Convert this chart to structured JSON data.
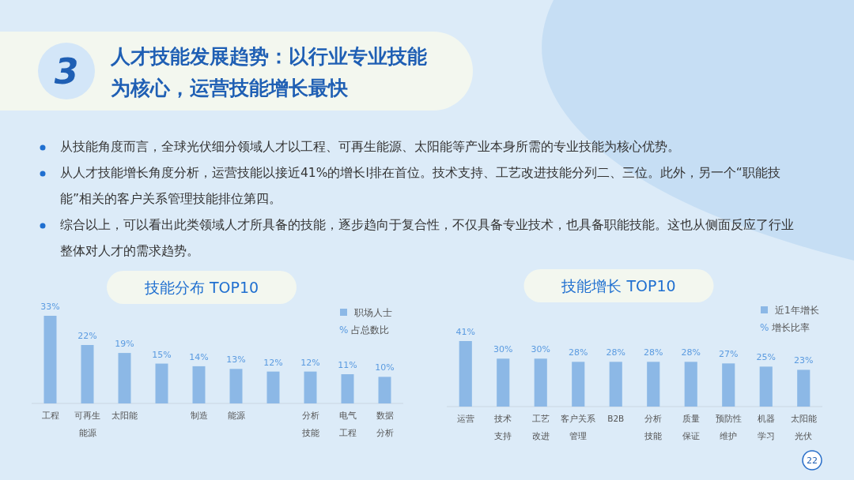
{
  "chart_data": [
    {
      "type": "other",
      "title": "人才技能发展趋势：以行业专业技能为核心，运营技能增长最快",
      "annotations": [
        "3",
        "从技能角度而言，全球光伏细分领域人才以工程、可再生能源、太阳能等产业本身所需的专业技能为核心优势。",
        "从人才技能增长角度分析，运营技能以接近41%的增长l排在首位。技术支持、工艺改进技能分列二、三位。此外，另一个“职能技能”相关的客户关系管理技能排位第四。",
        "综合以上，可以看出此类领域人才所具备的技能，逐步趋向于复合性，不仅具备专业技术，也具备职能技能。这也从侧面反应了行业整体对人才的需求趋势。",
        "22"
      ]
    },
    {
      "type": "bar",
      "title": "技能分布 TOP10",
      "categories": [
        "工程",
        "可再生能源",
        "太阳能",
        null,
        "制造",
        "能源",
        null,
        "分析技能",
        "电气工程",
        "数据分析"
      ],
      "series": [
        {
          "name": "职场人士",
          "color": "#8cb8e6",
          "values": [
            33,
            22,
            19,
            15,
            14,
            13,
            12,
            12,
            11,
            10
          ],
          "value_labels": [
            "33%",
            "22%",
            "19%",
            "15%",
            "14%",
            "13%",
            "12%",
            "12%",
            "11%",
            "10%"
          ]
        }
      ],
      "tick_labels": "x",
      "legend": "top right",
      "annotations": [
        "% 占总数比"
      ]
    },
    {
      "type": "bar",
      "title": "技能增长 TOP10",
      "categories": [
        "运营",
        "技术支持",
        "工艺改进",
        "客户关系管理",
        "B2B",
        "分析技能",
        "质量保证",
        "预防性维护",
        "机器学习",
        "太阳能光伏"
      ],
      "series": [
        {
          "name": "近1年增长",
          "color": "#8cb8e6",
          "values": [
            41,
            30,
            30,
            28,
            28,
            28,
            28,
            27,
            25,
            23
          ],
          "value_labels": [
            "41%",
            "30%",
            "30%",
            "28%",
            "28%",
            "28%",
            "28%",
            "27%",
            "25%",
            "23%"
          ]
        }
      ],
      "tick_labels": "x",
      "legend": "top right",
      "annotations": [
        "% 增长比率"
      ]
    }
  ]
}
